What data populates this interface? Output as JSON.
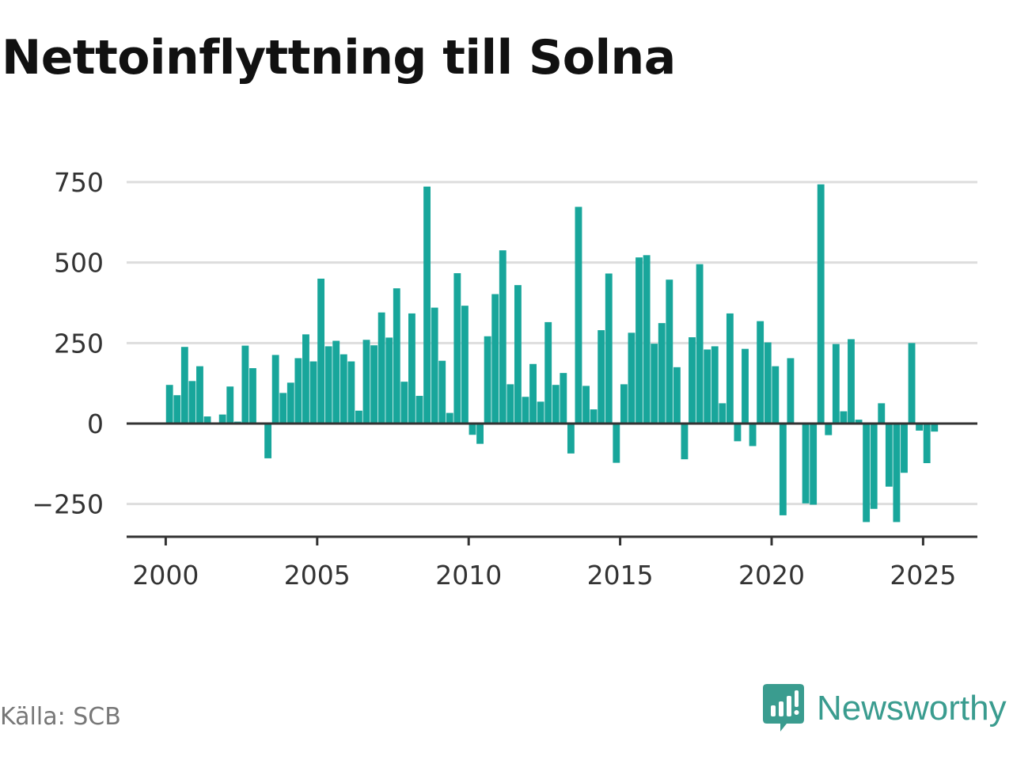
{
  "title": "Nettoinflyttning till Solna",
  "source": "Källa: SCB",
  "brand": {
    "name": "Newsworthy",
    "icon": "newsworthy-logo-icon",
    "color": "#3a9c8f"
  },
  "colors": {
    "bar": "#18a69b",
    "grid": "#dddddd",
    "zero_line": "#333333",
    "axis": "#333333"
  },
  "chart_data": {
    "type": "bar",
    "title": "Nettoinflyttning till Solna",
    "xlabel": "",
    "ylabel": "",
    "ylim": [
      -300,
      750
    ],
    "xlim": [
      1997.6,
      2027.8
    ],
    "yticks": [
      -250,
      0,
      250,
      500,
      750
    ],
    "ytick_labels": [
      "−250",
      "0",
      "250",
      "500",
      "750"
    ],
    "xticks": [
      2000,
      2005,
      2010,
      2015,
      2020,
      2025
    ],
    "xtick_labels": [
      "2000",
      "2005",
      "2010",
      "2015",
      "2020",
      "2025"
    ],
    "grid": true,
    "legend": "none",
    "bar_width_years": 0.2,
    "bars": [
      {
        "x": 2000.125,
        "y": 120
      },
      {
        "x": 2000.375,
        "y": 88
      },
      {
        "x": 2000.625,
        "y": 238
      },
      {
        "x": 2000.875,
        "y": 132
      },
      {
        "x": 2001.125,
        "y": 178
      },
      {
        "x": 2001.375,
        "y": 22
      },
      {
        "x": 2001.625,
        "y": 0
      },
      {
        "x": 2001.875,
        "y": 28
      },
      {
        "x": 2002.125,
        "y": 115
      },
      {
        "x": 2002.375,
        "y": 6
      },
      {
        "x": 2002.625,
        "y": 242
      },
      {
        "x": 2002.875,
        "y": 172
      },
      {
        "x": 2003.125,
        "y": 0
      },
      {
        "x": 2003.375,
        "y": -108
      },
      {
        "x": 2003.625,
        "y": 213
      },
      {
        "x": 2003.875,
        "y": 95
      },
      {
        "x": 2004.125,
        "y": 127
      },
      {
        "x": 2004.375,
        "y": 203
      },
      {
        "x": 2004.625,
        "y": 277
      },
      {
        "x": 2004.875,
        "y": 193
      },
      {
        "x": 2005.125,
        "y": 450
      },
      {
        "x": 2005.375,
        "y": 240
      },
      {
        "x": 2005.625,
        "y": 257
      },
      {
        "x": 2005.875,
        "y": 215
      },
      {
        "x": 2006.125,
        "y": 193
      },
      {
        "x": 2006.375,
        "y": 40
      },
      {
        "x": 2006.625,
        "y": 260
      },
      {
        "x": 2006.875,
        "y": 243
      },
      {
        "x": 2007.125,
        "y": 345
      },
      {
        "x": 2007.375,
        "y": 267
      },
      {
        "x": 2007.625,
        "y": 420
      },
      {
        "x": 2007.875,
        "y": 130
      },
      {
        "x": 2008.125,
        "y": 342
      },
      {
        "x": 2008.375,
        "y": 86
      },
      {
        "x": 2008.625,
        "y": 736
      },
      {
        "x": 2008.875,
        "y": 360
      },
      {
        "x": 2009.125,
        "y": 195
      },
      {
        "x": 2009.375,
        "y": 33
      },
      {
        "x": 2009.625,
        "y": 467
      },
      {
        "x": 2009.875,
        "y": 366
      },
      {
        "x": 2010.125,
        "y": -35
      },
      {
        "x": 2010.375,
        "y": -63
      },
      {
        "x": 2010.625,
        "y": 271
      },
      {
        "x": 2010.875,
        "y": 402
      },
      {
        "x": 2011.125,
        "y": 538
      },
      {
        "x": 2011.375,
        "y": 122
      },
      {
        "x": 2011.625,
        "y": 430
      },
      {
        "x": 2011.875,
        "y": 83
      },
      {
        "x": 2012.125,
        "y": 185
      },
      {
        "x": 2012.375,
        "y": 68
      },
      {
        "x": 2012.625,
        "y": 315
      },
      {
        "x": 2012.875,
        "y": 120
      },
      {
        "x": 2013.125,
        "y": 157
      },
      {
        "x": 2013.375,
        "y": -93
      },
      {
        "x": 2013.625,
        "y": 673
      },
      {
        "x": 2013.875,
        "y": 117
      },
      {
        "x": 2014.125,
        "y": 44
      },
      {
        "x": 2014.375,
        "y": 290
      },
      {
        "x": 2014.625,
        "y": 466
      },
      {
        "x": 2014.875,
        "y": -122
      },
      {
        "x": 2015.125,
        "y": 122
      },
      {
        "x": 2015.375,
        "y": 282
      },
      {
        "x": 2015.625,
        "y": 516
      },
      {
        "x": 2015.875,
        "y": 523
      },
      {
        "x": 2016.125,
        "y": 248
      },
      {
        "x": 2016.375,
        "y": 312
      },
      {
        "x": 2016.625,
        "y": 447
      },
      {
        "x": 2016.875,
        "y": 175
      },
      {
        "x": 2017.125,
        "y": -111
      },
      {
        "x": 2017.375,
        "y": 268
      },
      {
        "x": 2017.625,
        "y": 495
      },
      {
        "x": 2017.875,
        "y": 230
      },
      {
        "x": 2018.125,
        "y": 240
      },
      {
        "x": 2018.375,
        "y": 63
      },
      {
        "x": 2018.625,
        "y": 342
      },
      {
        "x": 2018.875,
        "y": -55
      },
      {
        "x": 2019.125,
        "y": 232
      },
      {
        "x": 2019.375,
        "y": -70
      },
      {
        "x": 2019.625,
        "y": 318
      },
      {
        "x": 2019.875,
        "y": 252
      },
      {
        "x": 2020.125,
        "y": 178
      },
      {
        "x": 2020.375,
        "y": -285
      },
      {
        "x": 2020.625,
        "y": 203
      },
      {
        "x": 2020.875,
        "y": 0
      },
      {
        "x": 2021.125,
        "y": -248
      },
      {
        "x": 2021.375,
        "y": -252
      },
      {
        "x": 2021.625,
        "y": 743
      },
      {
        "x": 2021.875,
        "y": -36
      },
      {
        "x": 2022.125,
        "y": 247
      },
      {
        "x": 2022.375,
        "y": 38
      },
      {
        "x": 2022.625,
        "y": 262
      },
      {
        "x": 2022.875,
        "y": 12
      },
      {
        "x": 2023.125,
        "y": -306
      },
      {
        "x": 2023.375,
        "y": -265
      },
      {
        "x": 2023.625,
        "y": 63
      },
      {
        "x": 2023.875,
        "y": -196
      },
      {
        "x": 2024.125,
        "y": -306
      },
      {
        "x": 2024.375,
        "y": -153
      },
      {
        "x": 2024.625,
        "y": 250
      },
      {
        "x": 2024.875,
        "y": -22
      },
      {
        "x": 2025.125,
        "y": -123
      },
      {
        "x": 2025.375,
        "y": -25
      }
    ]
  }
}
